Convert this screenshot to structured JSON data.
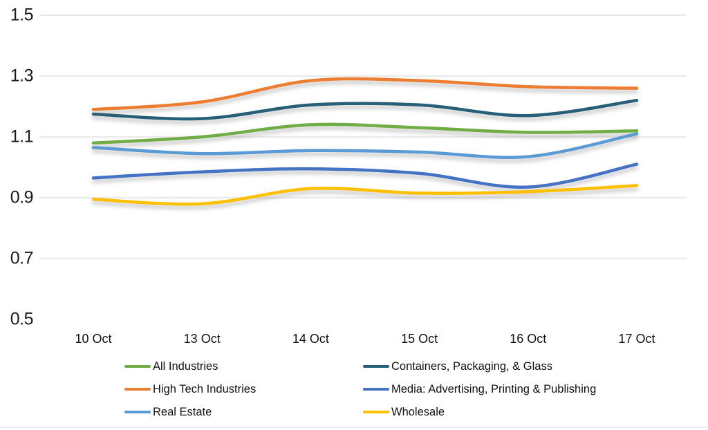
{
  "chart_data": {
    "type": "line",
    "title": "",
    "xlabel": "",
    "ylabel": "",
    "categories": [
      "10 Oct",
      "13 Oct",
      "14 Oct",
      "15 Oct",
      "16 Oct",
      "17 Oct"
    ],
    "series": [
      {
        "name": "All Industries",
        "color": "#70AD47",
        "values": [
          1.08,
          1.1,
          1.14,
          1.13,
          1.115,
          1.12
        ]
      },
      {
        "name": "Containers, Packaging, & Glass",
        "color": "#275E78",
        "values": [
          1.175,
          1.16,
          1.205,
          1.205,
          1.17,
          1.22
        ]
      },
      {
        "name": "High Tech Industries",
        "color": "#ED7D31",
        "values": [
          1.19,
          1.215,
          1.285,
          1.285,
          1.265,
          1.26
        ]
      },
      {
        "name": "Media: Advertising, Printing & Publishing",
        "color": "#4472C4",
        "values": [
          0.965,
          0.985,
          0.995,
          0.98,
          0.935,
          1.01
        ]
      },
      {
        "name": "Real Estate",
        "color": "#5B9BD5",
        "values": [
          1.065,
          1.045,
          1.055,
          1.05,
          1.035,
          1.11
        ]
      },
      {
        "name": "Wholesale",
        "color": "#FFC000",
        "values": [
          0.895,
          0.88,
          0.93,
          0.915,
          0.92,
          0.94
        ]
      }
    ],
    "y_axis": {
      "min": 0.5,
      "max": 1.5,
      "tick_labels": [
        "1.5",
        "1.3",
        "1.1",
        "0.9",
        "0.7",
        "0.5"
      ],
      "tick_values": [
        1.5,
        1.3,
        1.1,
        0.9,
        0.7,
        0.5
      ],
      "gridlines_at": [
        1.5,
        1.3,
        1.1,
        0.9,
        0.7
      ],
      "grid": "on"
    },
    "legend": {
      "position": "bottom",
      "columns": 2
    }
  }
}
